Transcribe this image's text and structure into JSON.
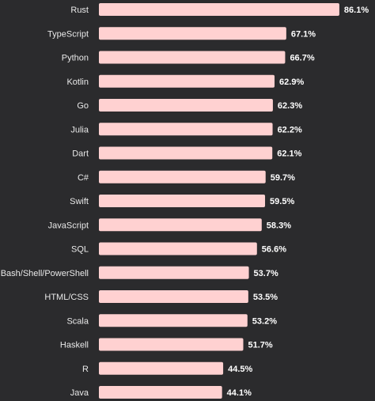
{
  "chart_data": {
    "type": "bar",
    "orientation": "horizontal",
    "title": "",
    "xlabel": "",
    "ylabel": "",
    "xlim": [
      0,
      100
    ],
    "grid": false,
    "bar_color": "#ffd1d1",
    "background_color": "#2b2b2d",
    "label_color": "#e9e9e9",
    "value_suffix": "%",
    "categories": [
      "Rust",
      "TypeScript",
      "Python",
      "Kotlin",
      "Go",
      "Julia",
      "Dart",
      "C#",
      "Swift",
      "JavaScript",
      "SQL",
      "Bash/Shell/PowerShell",
      "HTML/CSS",
      "Scala",
      "Haskell",
      "R",
      "Java"
    ],
    "values": [
      86.1,
      67.1,
      66.7,
      62.9,
      62.3,
      62.2,
      62.1,
      59.7,
      59.5,
      58.3,
      56.6,
      53.7,
      53.5,
      53.2,
      51.7,
      44.5,
      44.1
    ],
    "value_labels": [
      "86.1%",
      "67.1%",
      "66.7%",
      "62.9%",
      "62.3%",
      "62.2%",
      "62.1%",
      "59.7%",
      "59.5%",
      "58.3%",
      "56.6%",
      "53.7%",
      "53.5%",
      "53.2%",
      "51.7%",
      "44.5%",
      "44.1%"
    ]
  }
}
